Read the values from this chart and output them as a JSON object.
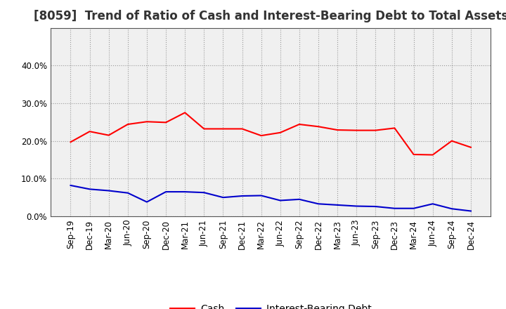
{
  "title": "[8059]  Trend of Ratio of Cash and Interest-Bearing Debt to Total Assets",
  "x_labels": [
    "Sep-19",
    "Dec-19",
    "Mar-20",
    "Jun-20",
    "Sep-20",
    "Dec-20",
    "Mar-21",
    "Jun-21",
    "Sep-21",
    "Dec-21",
    "Mar-22",
    "Jun-22",
    "Sep-22",
    "Dec-22",
    "Mar-23",
    "Jun-23",
    "Sep-23",
    "Dec-23",
    "Mar-24",
    "Jun-24",
    "Sep-24",
    "Dec-24"
  ],
  "cash": [
    0.197,
    0.225,
    0.215,
    0.244,
    0.251,
    0.249,
    0.275,
    0.232,
    0.232,
    0.232,
    0.214,
    0.222,
    0.244,
    0.238,
    0.229,
    0.228,
    0.228,
    0.234,
    0.164,
    0.163,
    0.2,
    0.183
  ],
  "debt": [
    0.082,
    0.072,
    0.068,
    0.062,
    0.038,
    0.065,
    0.065,
    0.063,
    0.05,
    0.054,
    0.055,
    0.042,
    0.045,
    0.033,
    0.03,
    0.027,
    0.026,
    0.021,
    0.021,
    0.033,
    0.02,
    0.014
  ],
  "cash_color": "#ff0000",
  "debt_color": "#0000cc",
  "background_color": "#ffffff",
  "plot_bg_color": "#f0f0f0",
  "grid_color": "#999999",
  "ylim": [
    0.0,
    0.5
  ],
  "yticks": [
    0.0,
    0.1,
    0.2,
    0.3,
    0.4
  ],
  "legend_cash": "Cash",
  "legend_debt": "Interest-Bearing Debt",
  "title_fontsize": 12,
  "axis_fontsize": 8.5,
  "legend_fontsize": 10
}
